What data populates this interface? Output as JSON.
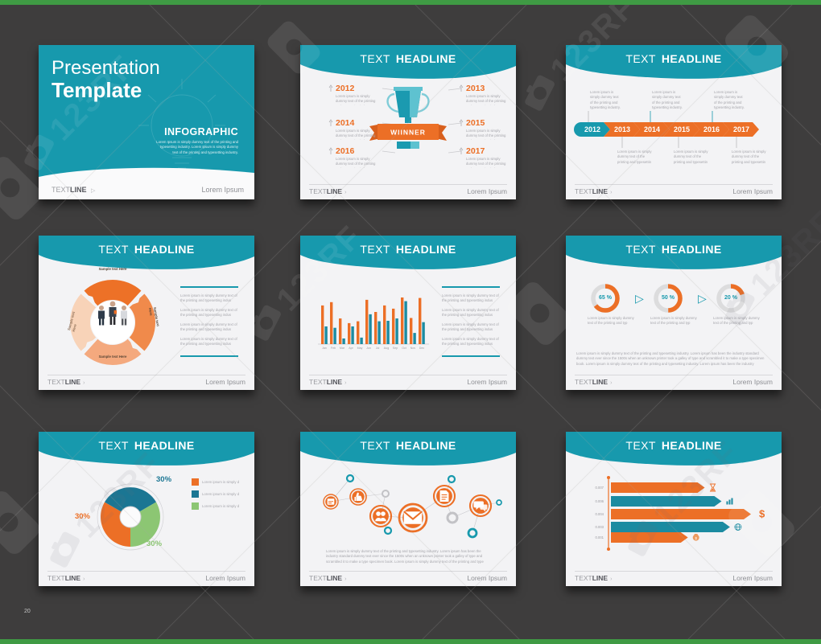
{
  "page": {
    "number": "20",
    "background": "#3e3d3d",
    "border_color": "#3f9b44"
  },
  "watermark": {
    "brand": "123RF",
    "brand_reg": "123RF®"
  },
  "colors": {
    "teal": "#1799ad",
    "teal_light": "#63c3d1",
    "orange": "#ec6f26",
    "orange_dark": "#d85f1c",
    "pie_teal": "#1b7693",
    "green": "#8cc673",
    "track": "#dcdcdd",
    "slide_bg": "#f3f3f5"
  },
  "common": {
    "headline_light": "TEXT",
    "headline_bold": "HEADLINE",
    "footer_light": "TEXT",
    "footer_bold": "LINE",
    "footer_chevron": "›",
    "footer_right": "Lorem Ipsum"
  },
  "cover": {
    "title_line1": "Presentation",
    "title_line2": "Template",
    "subtitle": "INFOGRAPHIC",
    "body": "Lorem Ipsum is simply dummy text of the printing and typesetting industry. Lorem Ipsum is simply dummy text of the printing and typesetting industry."
  },
  "lorem": {
    "three": "Lorem ipsum is simply dummy text of the printing and typesetting industry. Lorem ipsum has been the industry standard dummy text ever since the 1500s when an unknown printer took a galley of type and scrambled it to make a type specimen book."
  },
  "winner_slide": {
    "ribbon": "WIINNER",
    "years": [
      "2012",
      "2013",
      "2014",
      "2015",
      "2016",
      "2017"
    ]
  },
  "timeline_slide": {
    "years": [
      {
        "label": "2012",
        "color": "#1799ad"
      },
      {
        "label": "2013",
        "color": "#ec6f26"
      },
      {
        "label": "2014",
        "color": "#ec6f26"
      },
      {
        "label": "2015",
        "color": "#ec6f26"
      },
      {
        "label": "2016",
        "color": "#ec6f26"
      },
      {
        "label": "2017",
        "color": "#ec6f26"
      }
    ]
  },
  "process_slide": {
    "labels": [
      "Sample text Here",
      "Sample text Here",
      "Sample text Here",
      "Sample text Here"
    ],
    "segment_colors": [
      "#ed7127",
      "#f08a4b",
      "#f4a97e",
      "#f8d3b8"
    ]
  },
  "icons_slide": {
    "icon_names": [
      "calendar-icon",
      "thumbs-up-icon",
      "people-icon",
      "mail-icon",
      "document-icon",
      "chat-icon"
    ]
  },
  "chart_data": [
    {
      "id": "monthly-bar-chart",
      "type": "bar",
      "categories": [
        "Jan",
        "Feb",
        "Mar",
        "Apr",
        "May",
        "Jun",
        "Jul",
        "Aug",
        "Sep",
        "Oct",
        "Nov",
        "Dec"
      ],
      "series": [
        {
          "name": "orange",
          "color": "#ec6f26",
          "values": [
            83,
            90,
            55,
            45,
            49,
            95,
            69,
            83,
            76,
            100,
            56,
            99
          ]
        },
        {
          "name": "teal",
          "color": "#1b8ba1",
          "values": [
            38,
            35,
            12,
            38,
            14,
            64,
            49,
            50,
            55,
            92,
            24,
            47
          ]
        }
      ],
      "ylim": [
        0,
        100
      ],
      "grid": false,
      "legend": "none"
    },
    {
      "id": "percent-gauges",
      "type": "pie",
      "variant": "gauge-row",
      "values": [
        65,
        50,
        20
      ],
      "labels": [
        "65 %",
        "50 %",
        "20 %"
      ],
      "arc_color": "#ec6f26",
      "track_color": "#dcdcdd"
    },
    {
      "id": "share-donut",
      "type": "pie",
      "variant": "donut",
      "slices": [
        {
          "label": "30%",
          "value": 30,
          "color": "#ec6f26"
        },
        {
          "label": "30%",
          "value": 30,
          "color": "#1b7693"
        },
        {
          "label": "30%",
          "value": 30,
          "color": "#8cc673"
        }
      ],
      "legend_position": "right"
    },
    {
      "id": "horizontal-arrow-bars",
      "type": "bar",
      "orientation": "horizontal",
      "tick_labels": [
        "0.007",
        "0.006",
        "0.004",
        "0.003",
        "0.001"
      ],
      "values_pct": [
        67,
        79,
        100,
        85,
        55
      ],
      "bar_colors": [
        "#ec6f26",
        "#1b8ba1",
        "#ec6f26",
        "#1b8ba1",
        "#ec6f26"
      ],
      "icon_names": [
        "hourglass-icon",
        "column-chart-icon",
        "dollar-icon",
        "globe-icon",
        "money-bag-icon"
      ]
    }
  ]
}
